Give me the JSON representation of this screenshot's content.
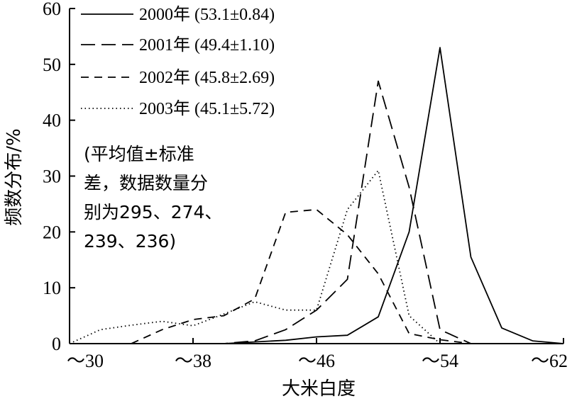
{
  "chart_data": {
    "type": "line",
    "xlabel": "大米白度",
    "ylabel": "频数分布/%",
    "x_tick_labels": [
      "～30",
      "～38",
      "～46",
      "～54",
      "～62"
    ],
    "y_ticks": [
      0,
      10,
      20,
      30,
      40,
      50,
      60
    ],
    "xlim": [
      30,
      62
    ],
    "ylim": [
      0,
      60
    ],
    "grid": false,
    "legend_position": "top-left",
    "series": [
      {
        "name": "2000年 (53.1±0.84)",
        "dash": "solid",
        "x": [
          38,
          40,
          42,
          44,
          46,
          48,
          50,
          52,
          54,
          56,
          58,
          60,
          62
        ],
        "y": [
          0,
          0,
          0.3,
          0.6,
          1.2,
          1.5,
          4.8,
          20,
          53,
          15.5,
          2.8,
          0.5,
          0
        ]
      },
      {
        "name": "2001年 (49.4±1.10)",
        "dash": "long-dash",
        "x": [
          38,
          40,
          42,
          44,
          46,
          48,
          50,
          52,
          54,
          56
        ],
        "y": [
          0,
          0,
          0.5,
          2.5,
          6,
          11.5,
          47,
          28,
          2.5,
          0
        ]
      },
      {
        "name": "2002年 (45.8±2.69)",
        "dash": "dash",
        "x": [
          34,
          36,
          38,
          40,
          42,
          44,
          46,
          48,
          50,
          52,
          54,
          56
        ],
        "y": [
          0,
          2.5,
          4.3,
          5,
          8,
          23.5,
          24,
          19.5,
          12.5,
          1.8,
          0.7,
          0
        ]
      },
      {
        "name": "2003年 (45.1±5.72)",
        "dash": "dot",
        "x": [
          30,
          32,
          34,
          36,
          38,
          40,
          42,
          44,
          46,
          48,
          50,
          52,
          54
        ],
        "y": [
          0,
          2.5,
          3.3,
          4,
          3.2,
          5.3,
          7.5,
          6,
          6,
          24,
          31,
          5,
          0
        ]
      }
    ],
    "annotation": [
      "(平均值±标准",
      "差，数据数量分",
      "别为295、274、",
      "239、236)"
    ]
  }
}
